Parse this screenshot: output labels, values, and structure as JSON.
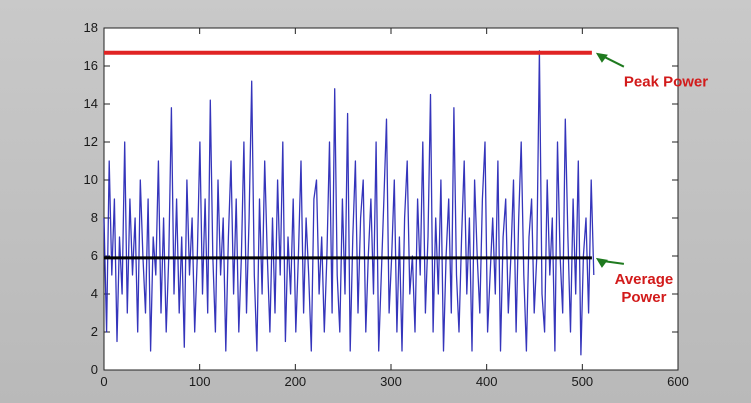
{
  "chart_data": {
    "type": "line",
    "title": "",
    "xlabel": "",
    "ylabel": "",
    "xlim": [
      0,
      600
    ],
    "ylim": [
      0,
      18
    ],
    "xticks": [
      0,
      100,
      200,
      300,
      400,
      500,
      600
    ],
    "yticks": [
      0,
      2,
      4,
      6,
      8,
      10,
      12,
      14,
      16,
      18
    ],
    "grid": false,
    "series": [
      {
        "name": "",
        "color": "#1f1fb4",
        "kind": "signal",
        "x_range": [
          0,
          512
        ],
        "values": [
          8,
          2,
          11,
          5,
          9,
          1.5,
          7,
          4,
          12,
          3,
          9,
          5,
          8,
          2,
          10,
          6,
          3,
          9,
          1,
          7,
          5,
          11,
          3,
          8,
          2,
          6,
          13.8,
          4,
          9,
          3,
          7,
          1.2,
          10,
          5,
          8,
          2,
          6,
          12,
          4,
          9,
          3,
          14.2,
          6,
          2,
          10,
          5,
          8,
          1,
          7,
          11,
          4,
          9,
          2,
          6,
          12,
          3,
          8,
          15.2,
          5,
          1,
          9,
          4,
          11,
          6,
          2,
          8,
          3,
          10,
          5,
          12,
          1.5,
          7,
          4,
          9,
          2,
          6,
          11,
          3,
          8,
          5,
          1,
          9,
          10,
          4,
          7,
          2,
          6,
          12,
          3,
          14.8,
          5,
          2,
          9,
          4,
          13.5,
          1,
          7,
          11,
          3,
          8,
          10,
          2,
          6,
          9,
          4,
          12,
          1,
          5,
          9,
          13.2,
          3,
          6,
          10,
          2,
          7,
          1,
          8,
          11,
          4,
          6,
          2,
          9,
          5,
          12,
          3,
          7,
          14.5,
          2,
          8,
          4,
          10,
          1,
          6,
          9,
          3,
          13.8,
          5,
          2,
          7,
          11,
          4,
          8,
          1,
          10,
          6,
          3,
          9,
          12,
          2,
          5,
          8,
          4,
          11,
          1,
          7,
          9,
          3,
          6,
          10,
          2,
          8,
          12,
          5,
          1,
          7,
          9,
          3,
          6,
          16.8,
          4,
          2,
          10,
          5,
          8,
          1,
          12,
          6,
          3,
          13.2,
          7,
          2,
          9,
          4,
          11,
          0.8,
          6,
          8,
          3,
          10,
          5
        ]
      },
      {
        "name": "Average Power",
        "color": "#000000",
        "kind": "hline",
        "value": 5.9,
        "x_range": [
          0,
          510
        ]
      },
      {
        "name": "Peak Power",
        "color": "#e02424",
        "kind": "hline",
        "value": 16.7,
        "x_range": [
          0,
          510
        ]
      }
    ],
    "annotations": [
      {
        "text_lines": [
          "Peak Power"
        ],
        "anchor_x": 510,
        "anchor_y": 16.7,
        "color": "#d21b1b",
        "arrow_color": "#1f7a1f"
      },
      {
        "text_lines": [
          "Average",
          "Power"
        ],
        "anchor_x": 510,
        "anchor_y": 5.9,
        "color": "#d21b1b",
        "arrow_color": "#1f7a1f"
      }
    ]
  }
}
